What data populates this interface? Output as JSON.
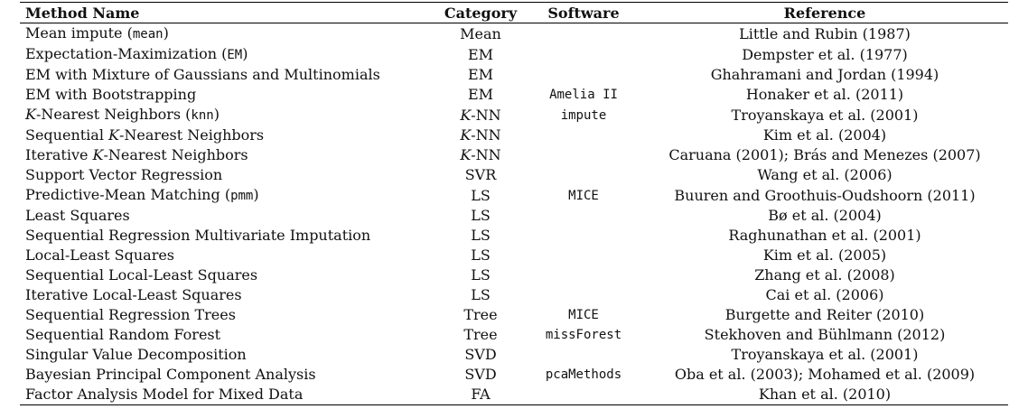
{
  "headers": {
    "method": "Method Name",
    "category": "Category",
    "software": "Software",
    "reference": "Reference"
  },
  "rows": [
    {
      "method_pre": "Mean impute (",
      "method_it": "",
      "method_mid": "",
      "method_code": "mean",
      "method_post": ")",
      "category_it": "",
      "category": "Mean",
      "software": "",
      "reference": "Little and Rubin (1987)"
    },
    {
      "method_pre": "Expectation-Maximization (",
      "method_it": "",
      "method_mid": "",
      "method_code": "EM",
      "method_post": ")",
      "category_it": "",
      "category": "EM",
      "software": "",
      "reference": "Dempster et al. (1977)"
    },
    {
      "method_pre": "EM with Mixture of Gaussians and Multinomials",
      "method_it": "",
      "method_mid": "",
      "method_code": "",
      "method_post": "",
      "category_it": "",
      "category": "EM",
      "software": "",
      "reference": "Ghahramani and Jordan (1994)"
    },
    {
      "method_pre": "EM with Bootstrapping",
      "method_it": "",
      "method_mid": "",
      "method_code": "",
      "method_post": "",
      "category_it": "",
      "category": "EM",
      "software": "Amelia II",
      "reference": "Honaker et al. (2011)"
    },
    {
      "method_pre": "",
      "method_it": "K",
      "method_mid": "-Nearest Neighbors (",
      "method_code": "knn",
      "method_post": ")",
      "category_it": "K",
      "category": "-NN",
      "software": "impute",
      "reference": "Troyanskaya et al. (2001)"
    },
    {
      "method_pre": "Sequential ",
      "method_it": "K",
      "method_mid": "-Nearest Neighbors",
      "method_code": "",
      "method_post": "",
      "category_it": "K",
      "category": "-NN",
      "software": "",
      "reference": "Kim et al. (2004)"
    },
    {
      "method_pre": "Iterative ",
      "method_it": "K",
      "method_mid": "-Nearest Neighbors",
      "method_code": "",
      "method_post": "",
      "category_it": "K",
      "category": "-NN",
      "software": "",
      "reference": "Caruana (2001); Brás and Menezes (2007)"
    },
    {
      "method_pre": "Support Vector Regression",
      "method_it": "",
      "method_mid": "",
      "method_code": "",
      "method_post": "",
      "category_it": "",
      "category": "SVR",
      "software": "",
      "reference": "Wang et al. (2006)"
    },
    {
      "method_pre": "Predictive-Mean Matching (",
      "method_it": "",
      "method_mid": "",
      "method_code": "pmm",
      "method_post": ")",
      "category_it": "",
      "category": "LS",
      "software": "MICE",
      "reference": "Buuren and Groothuis-Oudshoorn (2011)"
    },
    {
      "method_pre": "Least Squares",
      "method_it": "",
      "method_mid": "",
      "method_code": "",
      "method_post": "",
      "category_it": "",
      "category": "LS",
      "software": "",
      "reference": "Bø et al. (2004)"
    },
    {
      "method_pre": "Sequential Regression Multivariate Imputation",
      "method_it": "",
      "method_mid": "",
      "method_code": "",
      "method_post": "",
      "category_it": "",
      "category": "LS",
      "software": "",
      "reference": "Raghunathan et al. (2001)"
    },
    {
      "method_pre": "Local-Least Squares",
      "method_it": "",
      "method_mid": "",
      "method_code": "",
      "method_post": "",
      "category_it": "",
      "category": "LS",
      "software": "",
      "reference": "Kim et al. (2005)"
    },
    {
      "method_pre": "Sequential Local-Least Squares",
      "method_it": "",
      "method_mid": "",
      "method_code": "",
      "method_post": "",
      "category_it": "",
      "category": "LS",
      "software": "",
      "reference": "Zhang et al. (2008)"
    },
    {
      "method_pre": "Iterative Local-Least Squares",
      "method_it": "",
      "method_mid": "",
      "method_code": "",
      "method_post": "",
      "category_it": "",
      "category": "LS",
      "software": "",
      "reference": "Cai et al. (2006)"
    },
    {
      "method_pre": "Sequential Regression Trees",
      "method_it": "",
      "method_mid": "",
      "method_code": "",
      "method_post": "",
      "category_it": "",
      "category": "Tree",
      "software": "MICE",
      "reference": "Burgette and Reiter (2010)"
    },
    {
      "method_pre": "Sequential Random Forest",
      "method_it": "",
      "method_mid": "",
      "method_code": "",
      "method_post": "",
      "category_it": "",
      "category": "Tree",
      "software": "missForest",
      "reference": "Stekhoven and Bühlmann (2012)"
    },
    {
      "method_pre": "Singular Value Decomposition",
      "method_it": "",
      "method_mid": "",
      "method_code": "",
      "method_post": "",
      "category_it": "",
      "category": "SVD",
      "software": "",
      "reference": "Troyanskaya et al. (2001)"
    },
    {
      "method_pre": "Bayesian Principal Component Analysis",
      "method_it": "",
      "method_mid": "",
      "method_code": "",
      "method_post": "",
      "category_it": "",
      "category": "SVD",
      "software": "pcaMethods",
      "reference": "Oba et al. (2003); Mohamed et al. (2009)"
    },
    {
      "method_pre": "Factor Analysis Model for Mixed Data",
      "method_it": "",
      "method_mid": "",
      "method_code": "",
      "method_post": "",
      "category_it": "",
      "category": "FA",
      "software": "",
      "reference": "Khan et al. (2010)"
    }
  ]
}
